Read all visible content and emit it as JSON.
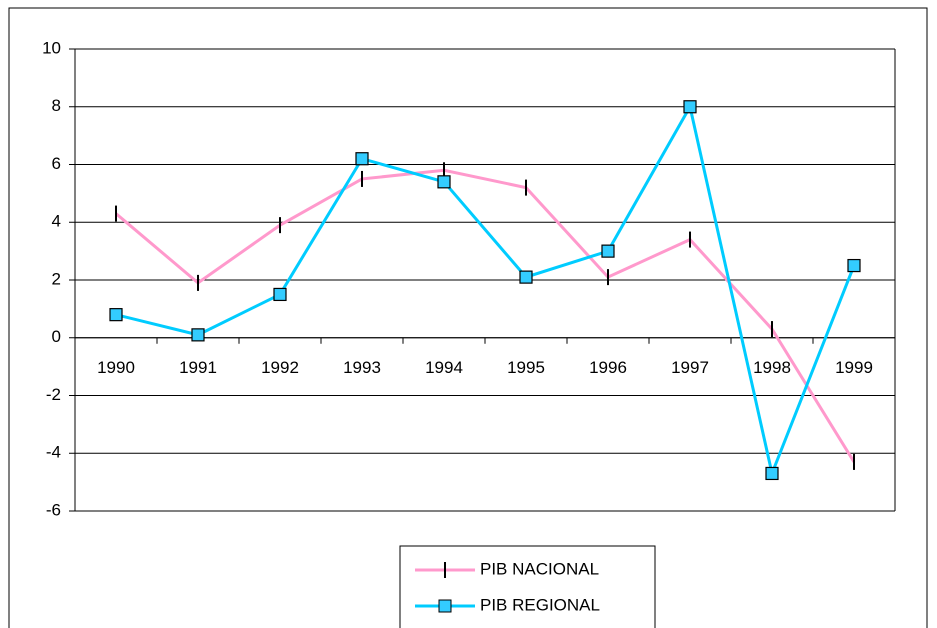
{
  "chart_data": {
    "type": "line",
    "categories": [
      "1990",
      "1991",
      "1992",
      "1993",
      "1994",
      "1995",
      "1996",
      "1997",
      "1998",
      "1999"
    ],
    "series": [
      {
        "name": "PIB NACIONAL",
        "color": "#ff99cc",
        "marker": "dash",
        "values": [
          4.3,
          1.9,
          3.9,
          5.5,
          5.8,
          5.2,
          2.1,
          3.4,
          0.3,
          -4.3
        ]
      },
      {
        "name": "PIB REGIONAL",
        "color": "#00ccff",
        "marker": "square",
        "values": [
          0.8,
          0.1,
          1.5,
          6.2,
          5.4,
          2.1,
          3.0,
          8.0,
          -4.7,
          2.5
        ]
      }
    ],
    "ylim": [
      -6,
      10
    ],
    "yticks": [
      -6,
      -4,
      -2,
      0,
      2,
      4,
      6,
      8,
      10
    ],
    "grid": true,
    "legend": "bottom"
  }
}
